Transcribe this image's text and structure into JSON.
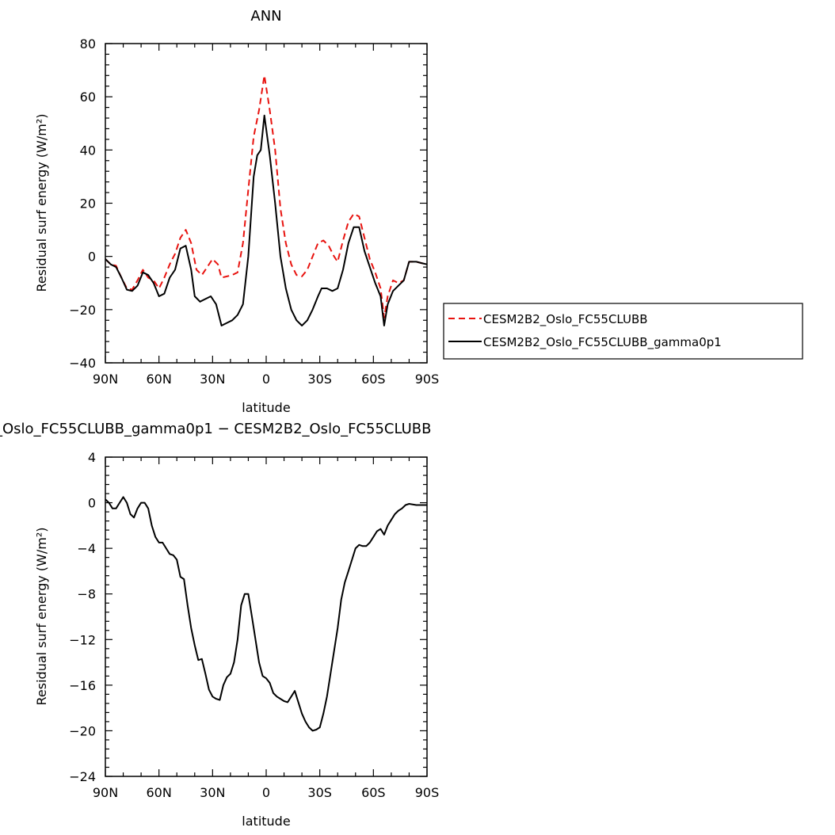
{
  "figure": {
    "title": "ANN",
    "subtitle": "_Oslo_FC55CLUBB_gamma0p1 − CESM2B2_Oslo_FC55CLUBB"
  },
  "chart_data": [
    {
      "type": "line",
      "title": "ANN",
      "xlabel": "latitude",
      "ylabel": "Residual surf energy (W/m²)",
      "xlim": [
        90,
        -90
      ],
      "ylim": [
        -40,
        80
      ],
      "x_ticks": [
        90,
        60,
        30,
        0,
        -30,
        -60,
        -90
      ],
      "x_tick_labels": [
        "90N",
        "60N",
        "30N",
        "0",
        "30S",
        "60S",
        "90S"
      ],
      "y_ticks": [
        80,
        60,
        40,
        20,
        0,
        -20,
        -40
      ],
      "y_tick_labels": [
        "80",
        "60",
        "40",
        "20",
        "0",
        "−20",
        "−40"
      ],
      "legend_position": "right",
      "series": [
        {
          "name": "CESM2B2_Oslo_FC55CLUBB",
          "color": "#e8130f",
          "dash": "dashed",
          "points": [
            [
              90,
              -1
            ],
            [
              87,
              -3
            ],
            [
              84,
              -3.5
            ],
            [
              81,
              -8
            ],
            [
              78,
              -12
            ],
            [
              75,
              -12.5
            ],
            [
              72,
              -9
            ],
            [
              69,
              -5
            ],
            [
              66,
              -8
            ],
            [
              63,
              -9
            ],
            [
              60,
              -12
            ],
            [
              57,
              -8
            ],
            [
              54,
              -3
            ],
            [
              51,
              1
            ],
            [
              48,
              7
            ],
            [
              45,
              10
            ],
            [
              42,
              5
            ],
            [
              39,
              -5
            ],
            [
              36,
              -7
            ],
            [
              33,
              -4
            ],
            [
              30,
              -1
            ],
            [
              27,
              -3
            ],
            [
              25,
              -8
            ],
            [
              22,
              -7.5
            ],
            [
              19,
              -7
            ],
            [
              16,
              -6
            ],
            [
              13,
              5
            ],
            [
              10,
              25
            ],
            [
              7,
              45
            ],
            [
              4,
              55
            ],
            [
              1,
              68
            ],
            [
              -2,
              55
            ],
            [
              -5,
              40
            ],
            [
              -8,
              18
            ],
            [
              -11,
              5
            ],
            [
              -14,
              -3
            ],
            [
              -17,
              -7
            ],
            [
              -20,
              -7.5
            ],
            [
              -23,
              -5
            ],
            [
              -26,
              0
            ],
            [
              -29,
              5
            ],
            [
              -32,
              6
            ],
            [
              -35,
              4
            ],
            [
              -38,
              0
            ],
            [
              -40,
              -2
            ],
            [
              -43,
              6
            ],
            [
              -46,
              13
            ],
            [
              -49,
              16
            ],
            [
              -52,
              15
            ],
            [
              -55,
              7
            ],
            [
              -58,
              -1
            ],
            [
              -61,
              -6
            ],
            [
              -64,
              -12
            ],
            [
              -66,
              -23
            ],
            [
              -68,
              -15
            ],
            [
              -71,
              -9
            ],
            [
              -74,
              -10
            ],
            [
              -77,
              -9
            ],
            [
              -80,
              -2
            ],
            [
              -84,
              -2
            ],
            [
              -87,
              -2.5
            ],
            [
              -90,
              -3
            ]
          ]
        },
        {
          "name": "CESM2B2_Oslo_FC55CLUBB_gamma0p1",
          "color": "#000000",
          "dash": "solid",
          "points": [
            [
              90,
              -1
            ],
            [
              87,
              -3
            ],
            [
              84,
              -4
            ],
            [
              81,
              -8
            ],
            [
              78,
              -12.5
            ],
            [
              75,
              -13
            ],
            [
              72,
              -11
            ],
            [
              69,
              -6
            ],
            [
              66,
              -7
            ],
            [
              63,
              -10
            ],
            [
              60,
              -15
            ],
            [
              57,
              -14
            ],
            [
              54,
              -8
            ],
            [
              51,
              -5
            ],
            [
              48,
              3
            ],
            [
              45,
              4
            ],
            [
              42,
              -5
            ],
            [
              40,
              -15
            ],
            [
              37,
              -17
            ],
            [
              34,
              -16
            ],
            [
              31,
              -15
            ],
            [
              28,
              -18
            ],
            [
              25,
              -26
            ],
            [
              22,
              -25
            ],
            [
              19,
              -24
            ],
            [
              16,
              -22
            ],
            [
              13,
              -18
            ],
            [
              10,
              0
            ],
            [
              7,
              30
            ],
            [
              5,
              38
            ],
            [
              3,
              40
            ],
            [
              1,
              53
            ],
            [
              -2,
              38
            ],
            [
              -5,
              20
            ],
            [
              -8,
              0
            ],
            [
              -11,
              -12
            ],
            [
              -14,
              -20
            ],
            [
              -17,
              -24
            ],
            [
              -20,
              -26
            ],
            [
              -23,
              -24
            ],
            [
              -26,
              -20
            ],
            [
              -29,
              -15
            ],
            [
              -31,
              -12
            ],
            [
              -34,
              -12
            ],
            [
              -37,
              -13
            ],
            [
              -40,
              -12
            ],
            [
              -43,
              -5
            ],
            [
              -46,
              5
            ],
            [
              -49,
              11
            ],
            [
              -52,
              11
            ],
            [
              -55,
              2
            ],
            [
              -58,
              -4
            ],
            [
              -61,
              -10
            ],
            [
              -64,
              -15
            ],
            [
              -66,
              -26
            ],
            [
              -68,
              -18
            ],
            [
              -71,
              -13
            ],
            [
              -74,
              -11
            ],
            [
              -77,
              -9
            ],
            [
              -80,
              -2
            ],
            [
              -84,
              -2
            ],
            [
              -87,
              -2.5
            ],
            [
              -90,
              -3
            ]
          ]
        }
      ]
    },
    {
      "type": "line",
      "title": "_Oslo_FC55CLUBB_gamma0p1 − CESM2B2_Oslo_FC55CLUBB",
      "xlabel": "latitude",
      "ylabel": "Residual surf energy (W/m²)",
      "xlim": [
        90,
        -90
      ],
      "ylim": [
        -24,
        4
      ],
      "x_ticks": [
        90,
        60,
        30,
        0,
        -30,
        -60,
        -90
      ],
      "x_tick_labels": [
        "90N",
        "60N",
        "30N",
        "0",
        "30S",
        "60S",
        "90S"
      ],
      "y_ticks": [
        4,
        0,
        -4,
        -8,
        -12,
        -16,
        -20,
        -24
      ],
      "y_tick_labels": [
        "4",
        "0",
        "−4",
        "−8",
        "−12",
        "−16",
        "−20",
        "−24"
      ],
      "series": [
        {
          "color": "#000000",
          "dash": "solid",
          "points": [
            [
              90,
              0.3
            ],
            [
              88,
              0
            ],
            [
              86,
              -0.5
            ],
            [
              84,
              -0.5
            ],
            [
              82,
              0
            ],
            [
              80,
              0.5
            ],
            [
              78,
              0
            ],
            [
              76,
              -1
            ],
            [
              74,
              -1.3
            ],
            [
              72,
              -0.5
            ],
            [
              70,
              0
            ],
            [
              68,
              0
            ],
            [
              66,
              -0.5
            ],
            [
              64,
              -2
            ],
            [
              62,
              -3
            ],
            [
              60,
              -3.5
            ],
            [
              58,
              -3.5
            ],
            [
              56,
              -4
            ],
            [
              54,
              -4.5
            ],
            [
              52,
              -4.6
            ],
            [
              50,
              -5
            ],
            [
              48,
              -6.5
            ],
            [
              46,
              -6.7
            ],
            [
              44,
              -9
            ],
            [
              42,
              -11
            ],
            [
              40,
              -12.5
            ],
            [
              38,
              -13.8
            ],
            [
              36,
              -13.7
            ],
            [
              34,
              -15
            ],
            [
              32,
              -16.4
            ],
            [
              30,
              -17
            ],
            [
              28,
              -17.2
            ],
            [
              26,
              -17.3
            ],
            [
              24,
              -16
            ],
            [
              22,
              -15.3
            ],
            [
              20,
              -15
            ],
            [
              18,
              -14
            ],
            [
              16,
              -12
            ],
            [
              14,
              -9
            ],
            [
              12,
              -8
            ],
            [
              10,
              -8
            ],
            [
              8,
              -10
            ],
            [
              6,
              -12
            ],
            [
              4,
              -14
            ],
            [
              2,
              -15.2
            ],
            [
              0,
              -15.4
            ],
            [
              -2,
              -15.8
            ],
            [
              -4,
              -16.7
            ],
            [
              -6,
              -17
            ],
            [
              -8,
              -17.2
            ],
            [
              -10,
              -17.4
            ],
            [
              -12,
              -17.5
            ],
            [
              -14,
              -17
            ],
            [
              -16,
              -16.5
            ],
            [
              -18,
              -17.5
            ],
            [
              -20,
              -18.5
            ],
            [
              -22,
              -19.2
            ],
            [
              -24,
              -19.7
            ],
            [
              -26,
              -20
            ],
            [
              -28,
              -19.9
            ],
            [
              -30,
              -19.7
            ],
            [
              -32,
              -18.5
            ],
            [
              -34,
              -17
            ],
            [
              -36,
              -15
            ],
            [
              -38,
              -13
            ],
            [
              -40,
              -11
            ],
            [
              -42,
              -8.5
            ],
            [
              -44,
              -7
            ],
            [
              -46,
              -6
            ],
            [
              -48,
              -5
            ],
            [
              -50,
              -4
            ],
            [
              -52,
              -3.7
            ],
            [
              -54,
              -3.8
            ],
            [
              -56,
              -3.8
            ],
            [
              -58,
              -3.5
            ],
            [
              -60,
              -3
            ],
            [
              -62,
              -2.5
            ],
            [
              -64,
              -2.3
            ],
            [
              -66,
              -2.8
            ],
            [
              -68,
              -2
            ],
            [
              -70,
              -1.5
            ],
            [
              -72,
              -1
            ],
            [
              -74,
              -0.7
            ],
            [
              -76,
              -0.5
            ],
            [
              -78,
              -0.2
            ],
            [
              -80,
              -0.1
            ],
            [
              -84,
              -0.2
            ],
            [
              -88,
              -0.2
            ],
            [
              -90,
              -0.2
            ]
          ]
        }
      ]
    }
  ]
}
